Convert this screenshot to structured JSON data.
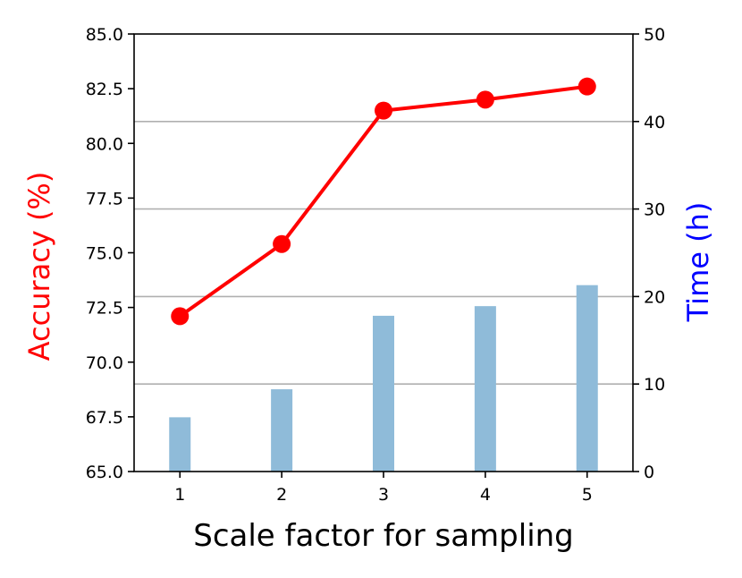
{
  "chart_data": {
    "type": "bar+line (dual axis)",
    "categories": [
      "1",
      "2",
      "3",
      "4",
      "5"
    ],
    "x": [
      1,
      2,
      3,
      4,
      5
    ],
    "xlabel": "Scale factor for sampling",
    "ylabel_left": {
      "parts": [
        {
          "text": "Accuracy (%)",
          "color": "#ff0000"
        }
      ]
    },
    "ylabel_right": {
      "parts": [
        {
          "text": "Time ",
          "color": "#0000ff"
        },
        {
          "text": "(h)",
          "color": "#0000ff"
        }
      ]
    },
    "ylim_left": [
      65.0,
      85.0
    ],
    "ylim_right": [
      0,
      50
    ],
    "yticks_left": [
      "65.0",
      "67.5",
      "70.0",
      "72.5",
      "75.0",
      "77.5",
      "80.0",
      "82.5",
      "85.0"
    ],
    "yticks_right": [
      "0",
      "10",
      "20",
      "30",
      "40",
      "50"
    ],
    "grid": "horizontal at right-axis ticks",
    "series": [
      {
        "kind": "line",
        "axis": "left",
        "color": "#ff0000",
        "marker": "circle",
        "values": [
          72.1,
          75.4,
          81.5,
          82.0,
          82.6
        ]
      },
      {
        "kind": "bar",
        "axis": "right",
        "color": "#8fbbd9",
        "values": [
          6.2,
          9.4,
          17.8,
          18.9,
          21.3
        ]
      }
    ]
  }
}
